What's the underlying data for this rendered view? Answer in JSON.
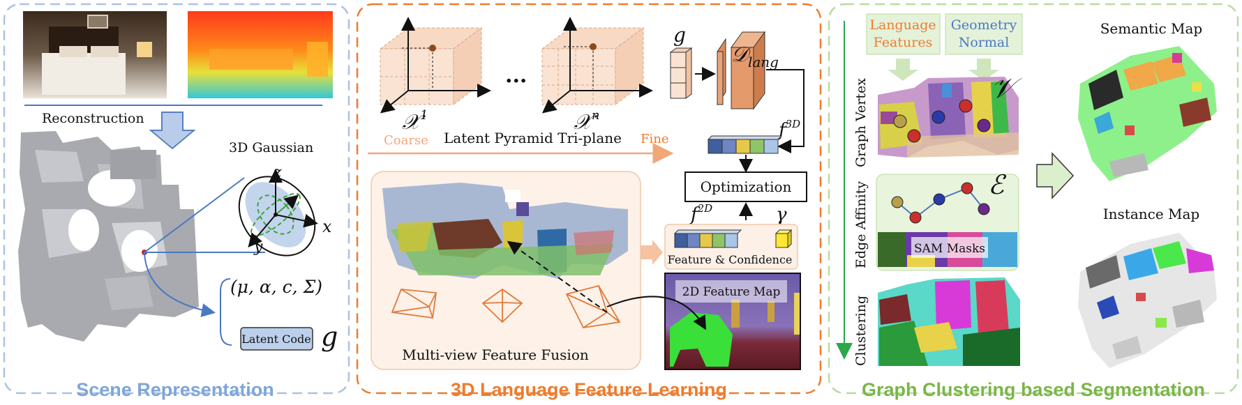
{
  "panels": {
    "scene": {
      "title": "Scene Representation",
      "color": "#7ea6d8"
    },
    "language": {
      "title": "3D Language Feature Learning",
      "color": "#ee7c2e"
    },
    "graph": {
      "title": "Graph Clustering based Segmentation",
      "color": "#7ab648"
    }
  },
  "scene": {
    "reconstruction": "Reconstruction",
    "gaussian_label": "3D Gaussian",
    "axis_x": "x",
    "axis_y": "y",
    "axis_z": "z",
    "params": "(μ, α, c, Σ)",
    "latent_code": "Latent Code",
    "latent_symbol": "g"
  },
  "language": {
    "triplane_first": "𝒳",
    "triplane_first_sup": "1",
    "triplane_last": "𝒳",
    "triplane_last_sup": "n",
    "ellipsis": "...",
    "coarse": "Coarse",
    "fine": "Fine",
    "pyramid_label": "Latent Pyramid Tri-plane",
    "g_symbol": "g",
    "decoder": "𝒟",
    "decoder_sub": "lang",
    "f3d": "f",
    "f3d_sup": "3D",
    "optimization": "Optimization",
    "f2d": "f",
    "f2d_sup": "2D",
    "gamma": "γ",
    "feature_confidence": "Feature & Confidence",
    "feature_map": "2D Feature Map",
    "fusion": "Multi-view Feature Fusion",
    "feature_colors": [
      "#3f5f9e",
      "#6e86c4",
      "#e6c84a",
      "#8fc46a",
      "#a9c6e8"
    ]
  },
  "graph": {
    "language_features": [
      "Language",
      "Features"
    ],
    "geometry_normal": [
      "Geometry",
      "Normal"
    ],
    "graph_vertex": "Graph Vertex",
    "vertex_symbol": "𝒱",
    "edge_affinity": "Edge Affinity",
    "edge_symbol": "ℰ",
    "sam_masks": "SAM Masks",
    "clustering": "Clustering",
    "semantic_map": "Semantic Map",
    "instance_map": "Instance Map"
  }
}
